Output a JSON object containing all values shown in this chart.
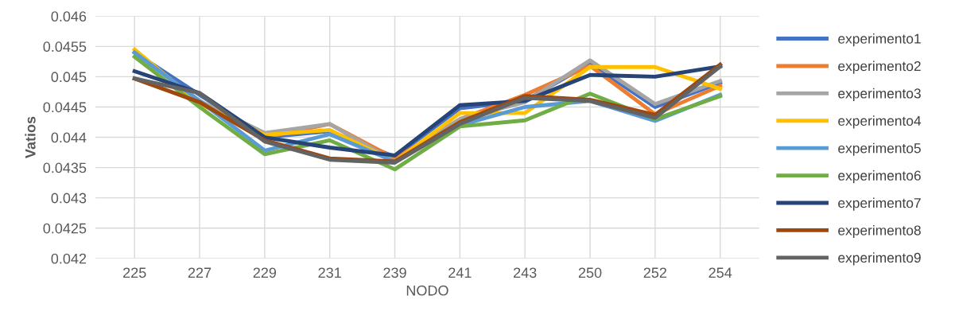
{
  "chart_data": {
    "type": "line",
    "xlabel": "NODO",
    "ylabel": "Vatios",
    "categories": [
      "225",
      "227",
      "229",
      "231",
      "239",
      "241",
      "243",
      "250",
      "252",
      "254"
    ],
    "ylim": [
      0.042,
      0.046
    ],
    "yticks": [
      0.042,
      0.0425,
      0.043,
      0.0435,
      0.044,
      0.0445,
      0.045,
      0.0455,
      0.046
    ],
    "grid": true,
    "legend": "right",
    "marker": "none",
    "line_style": "solid",
    "series": [
      {
        "name": "experimento1",
        "color": "#4472c4",
        "values": [
          0.0454,
          0.0447,
          0.044,
          0.0441,
          0.04368,
          0.04448,
          0.0446,
          0.04522,
          0.0445,
          0.0449
        ]
      },
      {
        "name": "experimento2",
        "color": "#ed7d31",
        "values": [
          0.0454,
          0.0446,
          0.044,
          0.04422,
          0.04365,
          0.0443,
          0.0447,
          0.04518,
          0.04438,
          0.04485
        ]
      },
      {
        "name": "experimento3",
        "color": "#a5a5a5",
        "values": [
          0.0454,
          0.0446,
          0.04407,
          0.04422,
          0.0436,
          0.0443,
          0.04458,
          0.04527,
          0.04455,
          0.04493
        ]
      },
      {
        "name": "experimento4",
        "color": "#ffc000",
        "values": [
          0.04545,
          0.04455,
          0.04404,
          0.04412,
          0.0436,
          0.0444,
          0.0444,
          0.04516,
          0.04516,
          0.0448
        ]
      },
      {
        "name": "experimento5",
        "color": "#5b9bd5",
        "values": [
          0.0454,
          0.0446,
          0.04378,
          0.04405,
          0.0436,
          0.0442,
          0.0445,
          0.0446,
          0.04427,
          0.0447
        ]
      },
      {
        "name": "experimento6",
        "color": "#70ad47",
        "values": [
          0.04533,
          0.0445,
          0.04372,
          0.04395,
          0.04347,
          0.04418,
          0.04428,
          0.04472,
          0.0443,
          0.04468
        ]
      },
      {
        "name": "experimento7",
        "color": "#264478",
        "values": [
          0.04509,
          0.04473,
          0.044,
          0.04383,
          0.0437,
          0.04453,
          0.0446,
          0.04503,
          0.045,
          0.04517
        ]
      },
      {
        "name": "experimento8",
        "color": "#9e480e",
        "values": [
          0.04497,
          0.04458,
          0.04395,
          0.04365,
          0.0436,
          0.04425,
          0.04468,
          0.04462,
          0.04437,
          0.0452
        ]
      },
      {
        "name": "experimento9",
        "color": "#636363",
        "values": [
          0.04497,
          0.04473,
          0.04393,
          0.04363,
          0.04358,
          0.04422,
          0.04465,
          0.0446,
          0.04432,
          0.04517
        ]
      }
    ]
  }
}
